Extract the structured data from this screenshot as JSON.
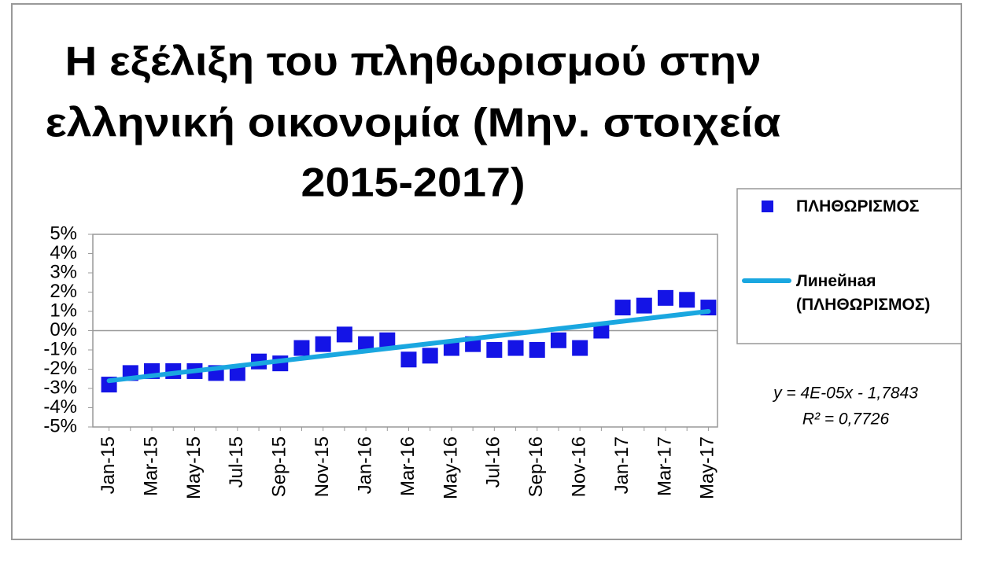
{
  "chart_data": {
    "type": "line",
    "title": [
      "Η εξέλιξη του πληθωρισμού στην",
      "ελληνική οικονομία (Μην. στοιχεία",
      "2015-2017)"
    ],
    "categories": [
      "Jan-15",
      null,
      "Mar-15",
      null,
      "May-15",
      null,
      "Jul-15",
      null,
      "Sep-15",
      null,
      "Nov-15",
      null,
      "Jan-16",
      null,
      "Mar-16",
      null,
      "May-16",
      null,
      "Jul-16",
      null,
      "Sep-16",
      null,
      "Nov-16",
      null,
      "Jan-17",
      null,
      "Mar-17",
      null,
      "May-17"
    ],
    "series": [
      {
        "name": "ΠΛΗΘΩΡΙΣΜΟΣ",
        "color": "#1414e6",
        "line": false,
        "marker": "square",
        "values": [
          -2.8,
          -2.2,
          -2.1,
          -2.1,
          -2.1,
          -2.2,
          -2.2,
          -1.6,
          -1.7,
          -0.9,
          -0.7,
          -0.2,
          -0.7,
          -0.5,
          -1.5,
          -1.3,
          -0.9,
          -0.7,
          -1.0,
          -0.9,
          -1.0,
          -0.5,
          -0.9,
          0.0,
          1.2,
          1.3,
          1.7,
          1.6,
          1.2
        ]
      }
    ],
    "trendline": {
      "name": "Линейная (ΠΛΗΘΩΡΙΣΜΟΣ)",
      "color": "#1aa7e0",
      "values": [
        -2.6,
        1.0
      ],
      "equation": "y = 4E-05x - 1,7843",
      "r2": "R² = 0,7726"
    },
    "ylim": [
      -5,
      5
    ],
    "yticks": [
      {
        "value": -5,
        "label": "-5%"
      },
      {
        "value": -4,
        "label": "-4%"
      },
      {
        "value": -3,
        "label": "-3%"
      },
      {
        "value": -2,
        "label": "-2%"
      },
      {
        "value": -1,
        "label": "-1%"
      },
      {
        "value": 0,
        "label": "0%"
      },
      {
        "value": 1,
        "label": "1%"
      },
      {
        "value": 2,
        "label": "2%"
      },
      {
        "value": 3,
        "label": "3%"
      },
      {
        "value": 4,
        "label": "4%"
      },
      {
        "value": 5,
        "label": "5%"
      }
    ],
    "legend": "right"
  }
}
